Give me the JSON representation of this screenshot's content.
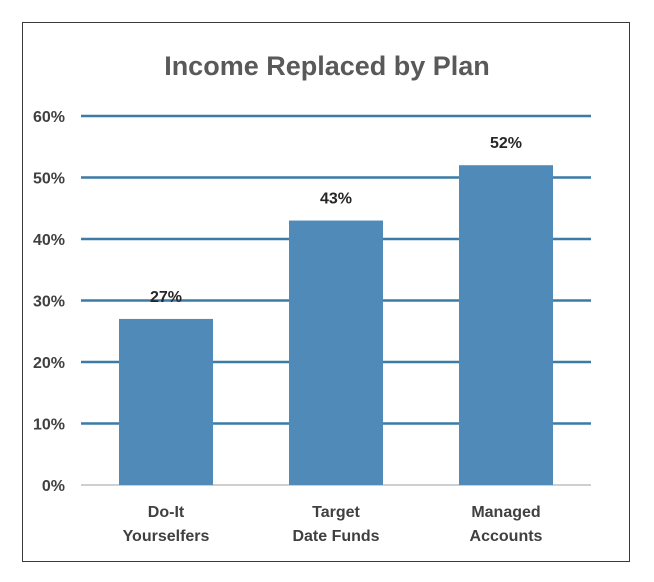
{
  "chart_data": {
    "type": "bar",
    "title": "Income Replaced by Plan",
    "categories": [
      [
        "Do-It",
        "Yourselfers"
      ],
      [
        "Target",
        "Date Funds"
      ],
      [
        "Managed",
        "Accounts"
      ]
    ],
    "values": [
      27,
      43,
      52
    ],
    "data_labels": [
      "27%",
      "43%",
      "52%"
    ],
    "yticks": [
      0,
      10,
      20,
      30,
      40,
      50,
      60
    ],
    "ytick_labels": [
      "0%",
      "10%",
      "20%",
      "30%",
      "40%",
      "50%",
      "60%"
    ],
    "ylim": [
      0,
      60
    ],
    "grid": true,
    "legend": "none",
    "colors": {
      "bar": "#4f8ab9",
      "gridline": "#3a7ca5",
      "baseline": "#bfbfbf",
      "title": "#595959",
      "axis_text": "#404040"
    }
  }
}
